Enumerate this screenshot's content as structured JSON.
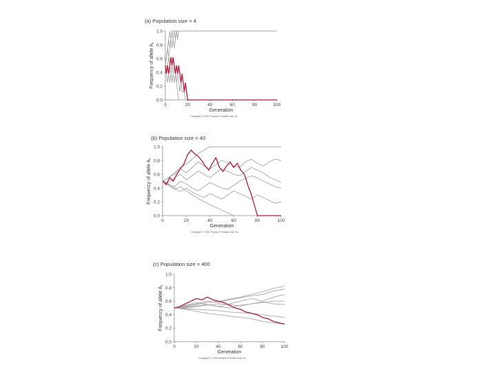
{
  "chart_data": [
    {
      "type": "line",
      "title": "(a) Population size = 4",
      "xlabel": "Generation",
      "ylabel": "Frequency of allele A₁",
      "xlim": [
        0,
        100
      ],
      "ylim": [
        0,
        1
      ],
      "xticks": [
        "0",
        "20",
        "40",
        "60",
        "80",
        "100"
      ],
      "yticks": [
        "0.0",
        "0.2",
        "0.4",
        "0.6",
        "0.8",
        "1.0"
      ],
      "copyright": "Copyright © 2004 Pearson Prentice Hall, Inc.",
      "colors": {
        "highlight": "#b5173a",
        "others": "#a6a6a6"
      },
      "series": [
        {
          "highlight": false,
          "x": [
            0,
            1,
            2,
            3,
            4,
            5,
            6,
            7,
            8,
            9,
            10,
            11,
            12,
            13,
            100
          ],
          "y": [
            0.5,
            0.62,
            0.75,
            0.88,
            1.0,
            0.88,
            1.0,
            0.88,
            1.0,
            0.88,
            1.0,
            0.88,
            1.0,
            1.0,
            1.0
          ]
        },
        {
          "highlight": false,
          "x": [
            0,
            1,
            2,
            3,
            4,
            5,
            6,
            7,
            8,
            9,
            10,
            11,
            12,
            100
          ],
          "y": [
            0.5,
            0.62,
            0.75,
            0.62,
            0.75,
            0.88,
            0.75,
            0.88,
            0.75,
            0.88,
            1.0,
            0.88,
            1.0,
            1.0
          ]
        },
        {
          "highlight": false,
          "x": [
            0,
            1,
            2,
            3,
            4,
            5,
            6,
            7,
            100
          ],
          "y": [
            0.5,
            0.62,
            0.75,
            0.88,
            0.75,
            0.88,
            1.0,
            1.0,
            1.0
          ]
        },
        {
          "highlight": false,
          "x": [
            0,
            1,
            2,
            3,
            4,
            5,
            6,
            7,
            8,
            9,
            10,
            11,
            12,
            100
          ],
          "y": [
            0.5,
            0.38,
            0.25,
            0.38,
            0.25,
            0.38,
            0.5,
            0.38,
            0.25,
            0.38,
            0.25,
            0.12,
            0.0,
            0.0
          ]
        },
        {
          "highlight": false,
          "x": [
            0,
            1,
            2,
            3,
            4,
            5,
            6,
            7,
            8,
            9,
            10,
            11,
            12,
            13,
            14,
            15,
            16,
            17,
            18,
            100
          ],
          "y": [
            0.5,
            0.38,
            0.5,
            0.62,
            0.5,
            0.38,
            0.25,
            0.38,
            0.5,
            0.38,
            0.25,
            0.38,
            0.25,
            0.12,
            0.25,
            0.12,
            0.12,
            0.12,
            0.0,
            0.0
          ]
        },
        {
          "highlight": true,
          "x": [
            0,
            1,
            2,
            3,
            4,
            5,
            6,
            7,
            8,
            9,
            10,
            11,
            12,
            13,
            14,
            15,
            16,
            17,
            18,
            19,
            20,
            100
          ],
          "y": [
            0.5,
            0.38,
            0.5,
            0.38,
            0.5,
            0.62,
            0.5,
            0.62,
            0.5,
            0.38,
            0.5,
            0.38,
            0.5,
            0.38,
            0.25,
            0.38,
            0.25,
            0.12,
            0.25,
            0.12,
            0.0,
            0.0
          ]
        }
      ]
    },
    {
      "type": "line",
      "title": "(b) Population size = 40",
      "xlabel": "Generation",
      "ylabel": "Frequency of allele A₁",
      "xlim": [
        0,
        100
      ],
      "ylim": [
        0,
        1
      ],
      "xticks": [
        "0",
        "20",
        "40",
        "60",
        "80",
        "100"
      ],
      "yticks": [
        "0.0",
        "0.2",
        "0.4",
        "0.6",
        "0.8",
        "1.0"
      ],
      "copyright": "Copyright © 2004 Pearson Prentice Hall, Inc.",
      "colors": {
        "highlight": "#b5173a",
        "others": "#a6a6a6"
      },
      "series": [
        {
          "highlight": false,
          "x": [
            0,
            5,
            10,
            15,
            20,
            25,
            30,
            35,
            40,
            45,
            50,
            55,
            60,
            65,
            70,
            75,
            80,
            85,
            90,
            95,
            100
          ],
          "y": [
            0.5,
            0.55,
            0.62,
            0.7,
            0.75,
            0.82,
            0.9,
            0.95,
            1.0,
            1.0,
            1.0,
            1.0,
            1.0,
            1.0,
            1.0,
            1.0,
            1.0,
            1.0,
            1.0,
            1.0,
            1.0
          ]
        },
        {
          "highlight": false,
          "x": [
            0,
            5,
            10,
            15,
            20,
            25,
            30,
            35,
            40,
            45,
            50,
            55,
            60,
            65,
            70,
            75,
            80,
            85,
            90,
            95,
            100
          ],
          "y": [
            0.5,
            0.55,
            0.6,
            0.68,
            0.62,
            0.7,
            0.78,
            0.72,
            0.68,
            0.74,
            0.8,
            0.76,
            0.72,
            0.7,
            0.78,
            0.82,
            0.76,
            0.72,
            0.78,
            0.82,
            0.8
          ]
        },
        {
          "highlight": false,
          "x": [
            0,
            5,
            10,
            15,
            20,
            25,
            30,
            35,
            40,
            45,
            50,
            55,
            60,
            65,
            70,
            75,
            80,
            85,
            90,
            95,
            100
          ],
          "y": [
            0.5,
            0.48,
            0.55,
            0.6,
            0.52,
            0.58,
            0.65,
            0.6,
            0.55,
            0.62,
            0.68,
            0.64,
            0.6,
            0.58,
            0.64,
            0.7,
            0.66,
            0.62,
            0.56,
            0.52,
            0.48
          ]
        },
        {
          "highlight": false,
          "x": [
            0,
            5,
            10,
            15,
            20,
            25,
            30,
            35,
            40,
            45,
            50,
            55,
            60,
            65,
            70,
            75,
            80,
            85,
            90,
            95,
            100
          ],
          "y": [
            0.5,
            0.45,
            0.42,
            0.5,
            0.46,
            0.4,
            0.36,
            0.42,
            0.48,
            0.44,
            0.4,
            0.38,
            0.44,
            0.5,
            0.54,
            0.58,
            0.55,
            0.5,
            0.46,
            0.42,
            0.4
          ]
        },
        {
          "highlight": false,
          "x": [
            0,
            5,
            10,
            15,
            20,
            25,
            30,
            35,
            40,
            45,
            50,
            55,
            60,
            65,
            70,
            75,
            80,
            85,
            90,
            95,
            100
          ],
          "y": [
            0.5,
            0.46,
            0.4,
            0.35,
            0.4,
            0.34,
            0.3,
            0.26,
            0.32,
            0.28,
            0.24,
            0.3,
            0.36,
            0.32,
            0.28,
            0.24,
            0.3,
            0.26,
            0.22,
            0.18,
            0.2
          ]
        },
        {
          "highlight": false,
          "x": [
            0,
            5,
            10,
            15,
            20,
            25,
            30,
            35,
            40,
            45,
            50,
            55,
            60,
            65,
            70,
            75,
            80,
            85,
            90,
            95,
            100
          ],
          "y": [
            0.5,
            0.44,
            0.38,
            0.42,
            0.36,
            0.3,
            0.25,
            0.2,
            0.16,
            0.12,
            0.08,
            0.04,
            0.0,
            0.0,
            0.0,
            0.0,
            0.0,
            0.0,
            0.0,
            0.0,
            0.0
          ]
        },
        {
          "highlight": true,
          "x": [
            0,
            3,
            6,
            9,
            12,
            15,
            18,
            21,
            24,
            27,
            30,
            33,
            36,
            39,
            42,
            45,
            48,
            51,
            54,
            57,
            60,
            63,
            66,
            69,
            72,
            75,
            78,
            80,
            100
          ],
          "y": [
            0.5,
            0.45,
            0.55,
            0.5,
            0.6,
            0.68,
            0.75,
            0.88,
            0.95,
            0.9,
            0.86,
            0.8,
            0.72,
            0.66,
            0.76,
            0.84,
            0.7,
            0.64,
            0.72,
            0.78,
            0.7,
            0.76,
            0.66,
            0.6,
            0.44,
            0.3,
            0.12,
            0.0,
            0.0
          ]
        }
      ]
    },
    {
      "type": "line",
      "title": "(c) Population size = 400",
      "xlabel": "Generation",
      "ylabel": "Frequency of allele A₁",
      "xlim": [
        0,
        100
      ],
      "ylim": [
        0,
        1
      ],
      "xticks": [
        "0",
        "20",
        "40",
        "60",
        "80",
        "100"
      ],
      "yticks": [
        "0.0",
        "0.2",
        "0.4",
        "0.6",
        "0.8",
        "1.0"
      ],
      "copyright": "Copyright © 2004 Pearson Prentice Hall, Inc.",
      "colors": {
        "highlight": "#b5173a",
        "others": "#a6a6a6"
      },
      "series": [
        {
          "highlight": false,
          "x": [
            0,
            10,
            20,
            30,
            40,
            50,
            60,
            70,
            80,
            90,
            100
          ],
          "y": [
            0.5,
            0.52,
            0.55,
            0.58,
            0.6,
            0.63,
            0.66,
            0.7,
            0.74,
            0.79,
            0.82
          ]
        },
        {
          "highlight": false,
          "x": [
            0,
            10,
            20,
            30,
            40,
            50,
            60,
            70,
            80,
            90,
            100
          ],
          "y": [
            0.5,
            0.53,
            0.56,
            0.6,
            0.58,
            0.62,
            0.65,
            0.68,
            0.7,
            0.75,
            0.78
          ]
        },
        {
          "highlight": false,
          "x": [
            0,
            10,
            20,
            30,
            40,
            50,
            60,
            70,
            80,
            90,
            100
          ],
          "y": [
            0.5,
            0.54,
            0.58,
            0.55,
            0.52,
            0.56,
            0.6,
            0.64,
            0.6,
            0.66,
            0.7
          ]
        },
        {
          "highlight": false,
          "x": [
            0,
            10,
            20,
            30,
            40,
            50,
            60,
            70,
            80,
            90,
            100
          ],
          "y": [
            0.5,
            0.51,
            0.53,
            0.55,
            0.52,
            0.5,
            0.54,
            0.56,
            0.58,
            0.6,
            0.6
          ]
        },
        {
          "highlight": false,
          "x": [
            0,
            10,
            20,
            30,
            40,
            50,
            60,
            70,
            80,
            90,
            100
          ],
          "y": [
            0.5,
            0.5,
            0.52,
            0.54,
            0.56,
            0.55,
            0.53,
            0.56,
            0.59,
            0.56,
            0.55
          ]
        },
        {
          "highlight": false,
          "x": [
            0,
            10,
            20,
            30,
            40,
            50,
            60,
            70,
            80,
            90,
            100
          ],
          "y": [
            0.5,
            0.49,
            0.48,
            0.47,
            0.46,
            0.44,
            0.43,
            0.42,
            0.4,
            0.38,
            0.36
          ]
        },
        {
          "highlight": false,
          "x": [
            0,
            10,
            20,
            30,
            40,
            50,
            60,
            70,
            80,
            90,
            100
          ],
          "y": [
            0.5,
            0.48,
            0.45,
            0.42,
            0.4,
            0.38,
            0.36,
            0.34,
            0.3,
            0.28,
            0.26
          ]
        },
        {
          "highlight": true,
          "x": [
            0,
            5,
            10,
            15,
            20,
            25,
            30,
            35,
            40,
            45,
            50,
            55,
            60,
            65,
            70,
            75,
            80,
            85,
            90,
            95,
            100
          ],
          "y": [
            0.5,
            0.52,
            0.56,
            0.6,
            0.64,
            0.62,
            0.66,
            0.62,
            0.6,
            0.58,
            0.54,
            0.5,
            0.48,
            0.44,
            0.42,
            0.4,
            0.36,
            0.34,
            0.3,
            0.28,
            0.26
          ]
        }
      ]
    }
  ]
}
